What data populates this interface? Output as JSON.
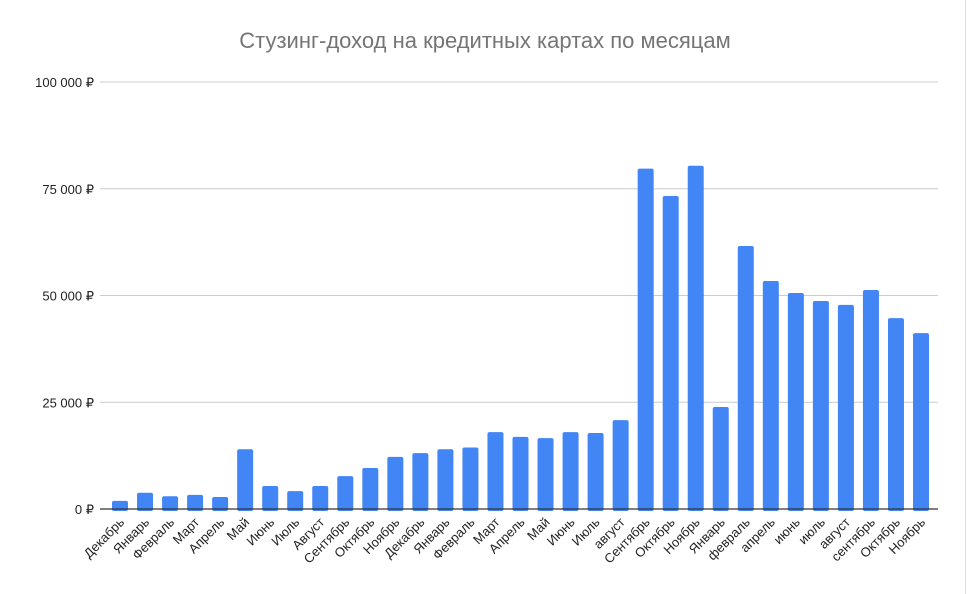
{
  "chart_data": {
    "type": "bar",
    "title": "Стузинг-доход на кредитных картах по месяцам",
    "xlabel": "",
    "ylabel": "",
    "ylim": [
      0,
      100000
    ],
    "yticks": [
      0,
      25000,
      50000,
      75000,
      100000
    ],
    "ytick_labels": [
      "0 ₽",
      "25 000 ₽",
      "50 000 ₽",
      "75 000 ₽",
      "100 000 ₽"
    ],
    "grid": true,
    "legend": "none",
    "bar_color": "#4285f4",
    "categories": [
      "Декабрь",
      "Январь",
      "Февраль",
      "Март",
      "Апрель",
      "Май",
      "Июнь",
      "Июль",
      "Август",
      "Сентябрь",
      "Октябрь",
      "Ноябрь",
      "Декабрь",
      "Январь",
      "Февраль",
      "Март",
      "Апрель",
      "Май",
      "Июнь",
      "Июль",
      "август",
      "Сентябрь",
      "Октябрь",
      "Ноябрь",
      "Январь",
      "февраль",
      "апрель",
      "июнь",
      "июль",
      "август",
      "сентябрь",
      "Октябрь",
      "Ноябрь"
    ],
    "values": [
      1900,
      3800,
      3000,
      3300,
      2800,
      14000,
      5400,
      4200,
      5400,
      7700,
      9600,
      12200,
      13100,
      14000,
      14400,
      18000,
      16900,
      16600,
      18000,
      17800,
      20800,
      79700,
      73300,
      80400,
      23900,
      61600,
      53400,
      50600,
      48700,
      47800,
      51300,
      44700,
      41200
    ]
  }
}
